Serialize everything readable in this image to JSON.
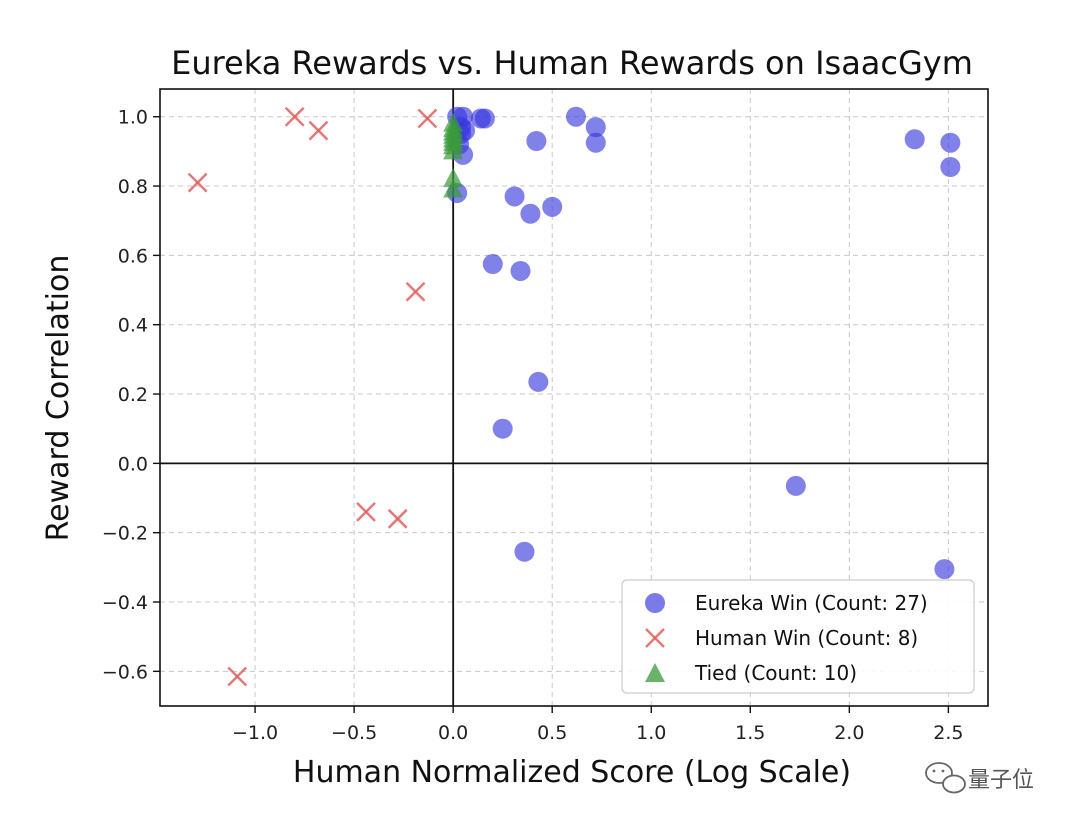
{
  "chart_data": {
    "type": "scatter",
    "title": "Eureka Rewards vs. Human Rewards on IsaacGym",
    "xlabel": "Human Normalized Score (Log Scale)",
    "ylabel": "Reward Correlation",
    "xlim": [
      -1.48,
      2.7
    ],
    "ylim": [
      -0.7,
      1.08
    ],
    "xticks": [
      -1.0,
      -0.5,
      0.0,
      0.5,
      1.0,
      1.5,
      2.0,
      2.5
    ],
    "xtick_labels": [
      "−1.0",
      "−0.5",
      "0.0",
      "0.5",
      "1.0",
      "1.5",
      "2.0",
      "2.5"
    ],
    "yticks": [
      -0.6,
      -0.4,
      -0.2,
      0.0,
      0.2,
      0.4,
      0.6,
      0.8,
      1.0
    ],
    "ytick_labels": [
      "−0.6",
      "−0.4",
      "−0.2",
      "0.0",
      "0.2",
      "0.4",
      "0.6",
      "0.8",
      "1.0"
    ],
    "grid": true,
    "legend_position": "lower-right",
    "series": [
      {
        "name": "Eureka Win (Count: 27)",
        "marker": "circle",
        "color": "#3333dd",
        "points": [
          [
            0.02,
            1.0
          ],
          [
            0.05,
            1.0
          ],
          [
            0.14,
            0.995
          ],
          [
            0.16,
            0.995
          ],
          [
            0.62,
            1.0
          ],
          [
            0.72,
            0.97
          ],
          [
            0.72,
            0.925
          ],
          [
            0.42,
            0.93
          ],
          [
            0.04,
            0.97
          ],
          [
            0.04,
            0.95
          ],
          [
            0.03,
            0.92
          ],
          [
            0.05,
            0.89
          ],
          [
            0.02,
            0.78
          ],
          [
            0.31,
            0.77
          ],
          [
            0.39,
            0.72
          ],
          [
            0.5,
            0.74
          ],
          [
            0.2,
            0.575
          ],
          [
            0.34,
            0.555
          ],
          [
            0.43,
            0.235
          ],
          [
            0.25,
            0.1
          ],
          [
            1.73,
            -0.065
          ],
          [
            0.36,
            -0.255
          ],
          [
            2.48,
            -0.305
          ],
          [
            2.33,
            0.935
          ],
          [
            2.51,
            0.925
          ],
          [
            2.51,
            0.855
          ],
          [
            0.06,
            0.96
          ]
        ]
      },
      {
        "name": "Human Win (Count: 8)",
        "marker": "x",
        "color": "#e06060",
        "points": [
          [
            -0.8,
            1.0
          ],
          [
            -0.68,
            0.96
          ],
          [
            -0.13,
            0.995
          ],
          [
            -1.29,
            0.81
          ],
          [
            -0.19,
            0.495
          ],
          [
            -0.44,
            -0.14
          ],
          [
            -0.28,
            -0.16
          ],
          [
            -1.09,
            -0.615
          ]
        ]
      },
      {
        "name": "Tied (Count: 10)",
        "marker": "triangle",
        "color": "#3a9a3a",
        "points": [
          [
            0.0,
            0.98
          ],
          [
            0.0,
            0.965
          ],
          [
            0.0,
            0.955
          ],
          [
            0.0,
            0.945
          ],
          [
            0.0,
            0.935
          ],
          [
            0.0,
            0.925
          ],
          [
            0.0,
            0.915
          ],
          [
            0.0,
            0.9
          ],
          [
            0.0,
            0.82
          ],
          [
            0.0,
            0.79
          ]
        ]
      }
    ]
  },
  "watermark": {
    "text": "量子位",
    "icon": "wechat-icon"
  }
}
